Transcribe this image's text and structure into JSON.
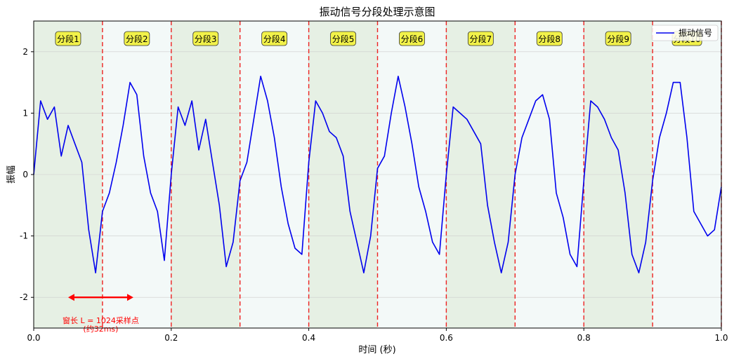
{
  "chart_data": {
    "type": "line",
    "title": "振动信号分段处理示意图",
    "xlabel": "时间 (秒)",
    "ylabel": "振幅",
    "xlim": [
      0.0,
      1.0
    ],
    "ylim": [
      -2.5,
      2.5
    ],
    "x_ticks": [
      "0.0",
      "0.2",
      "0.4",
      "0.6",
      "0.8",
      "1.0"
    ],
    "y_ticks": [
      "-2",
      "-1",
      "0",
      "1",
      "2"
    ],
    "grid": true,
    "legend_position": "top-right",
    "series": [
      {
        "name": "振动信号",
        "color": "#0000ee",
        "x": [
          0.0,
          0.01,
          0.02,
          0.03,
          0.04,
          0.05,
          0.06,
          0.07,
          0.08,
          0.09,
          0.1,
          0.11,
          0.12,
          0.13,
          0.14,
          0.15,
          0.16,
          0.17,
          0.18,
          0.19,
          0.2,
          0.21,
          0.22,
          0.23,
          0.24,
          0.25,
          0.26,
          0.27,
          0.28,
          0.29,
          0.3,
          0.31,
          0.32,
          0.33,
          0.34,
          0.35,
          0.36,
          0.37,
          0.38,
          0.39,
          0.4,
          0.41,
          0.42,
          0.43,
          0.44,
          0.45,
          0.46,
          0.47,
          0.48,
          0.49,
          0.5,
          0.51,
          0.52,
          0.53,
          0.54,
          0.55,
          0.56,
          0.57,
          0.58,
          0.59,
          0.6,
          0.61,
          0.62,
          0.63,
          0.64,
          0.65,
          0.66,
          0.67,
          0.68,
          0.69,
          0.7,
          0.71,
          0.72,
          0.73,
          0.74,
          0.75,
          0.76,
          0.77,
          0.78,
          0.79,
          0.8,
          0.81,
          0.82,
          0.83,
          0.84,
          0.85,
          0.86,
          0.87,
          0.88,
          0.89,
          0.9,
          0.91,
          0.92,
          0.93,
          0.94,
          0.95,
          0.96,
          0.97,
          0.98,
          0.99,
          1.0
        ],
        "y": [
          0.0,
          1.2,
          0.9,
          1.1,
          0.3,
          0.8,
          0.5,
          0.2,
          -0.9,
          -1.6,
          -0.6,
          -0.3,
          0.2,
          0.8,
          1.5,
          1.3,
          0.3,
          -0.3,
          -0.6,
          -1.4,
          0.0,
          1.1,
          0.8,
          1.2,
          0.4,
          0.9,
          0.2,
          -0.5,
          -1.5,
          -1.1,
          -0.1,
          0.2,
          0.9,
          1.6,
          1.2,
          0.6,
          -0.2,
          -0.8,
          -1.2,
          -1.3,
          0.2,
          1.2,
          1.0,
          0.7,
          0.6,
          0.3,
          -0.6,
          -1.1,
          -1.6,
          -1.0,
          0.1,
          0.3,
          1.0,
          1.6,
          1.1,
          0.5,
          -0.2,
          -0.6,
          -1.1,
          -1.3,
          0.0,
          1.1,
          1.0,
          0.9,
          0.7,
          0.5,
          -0.5,
          -1.1,
          -1.6,
          -1.1,
          0.0,
          0.6,
          0.9,
          1.2,
          1.3,
          0.9,
          -0.3,
          -0.7,
          -1.3,
          -1.5,
          -0.1,
          1.2,
          1.1,
          0.9,
          0.6,
          0.4,
          -0.3,
          -1.3,
          -1.6,
          -1.1,
          -0.1,
          0.6,
          1.0,
          1.5,
          1.5,
          0.6,
          -0.6,
          -0.8,
          -1.0,
          -0.9,
          -0.2
        ]
      }
    ],
    "segments": [
      "分段1",
      "分段2",
      "分段3",
      "分段4",
      "分段5",
      "分段6",
      "分段7",
      "分段8",
      "分段9",
      "分段10"
    ],
    "segment_colors": [
      "#e6f0e4",
      "#f3f9f8"
    ],
    "annotation": {
      "line1": "窗长 L = 1024采样点",
      "line2": "(约32ms)",
      "x_start": 0.05,
      "x_end": 0.145,
      "y": -2.0
    }
  }
}
